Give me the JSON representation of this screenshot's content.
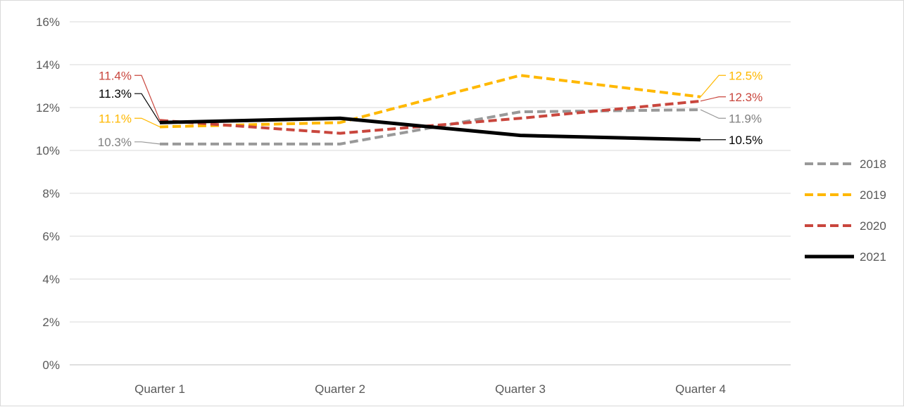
{
  "chart_data": {
    "type": "line",
    "title": "",
    "xlabel": "",
    "ylabel": "",
    "categories": [
      "Quarter 1",
      "Quarter 2",
      "Quarter 3",
      "Quarter 4"
    ],
    "ylim": [
      0,
      16
    ],
    "y_ticks": [
      "0%",
      "2%",
      "4%",
      "6%",
      "8%",
      "10%",
      "12%",
      "14%",
      "16%"
    ],
    "grid": true,
    "legend_position": "right",
    "series": [
      {
        "name": "2018",
        "values": [
          10.3,
          10.3,
          11.8,
          11.9
        ],
        "color": "#999999",
        "style": "dashed",
        "end_labels": [
          "10.3%",
          "11.9%"
        ]
      },
      {
        "name": "2019",
        "values": [
          11.1,
          11.3,
          13.5,
          12.5
        ],
        "color": "#FFB800",
        "style": "dashed",
        "end_labels": [
          "11.1%",
          "12.5%"
        ]
      },
      {
        "name": "2020",
        "values": [
          11.4,
          10.8,
          11.5,
          12.3
        ],
        "color": "#C9463D",
        "style": "dashed",
        "end_labels": [
          "11.4%",
          "12.3%"
        ]
      },
      {
        "name": "2021",
        "values": [
          11.3,
          11.5,
          10.7,
          10.5
        ],
        "color": "#000000",
        "style": "solid",
        "end_labels": [
          "11.3%",
          "10.5%"
        ]
      }
    ]
  }
}
